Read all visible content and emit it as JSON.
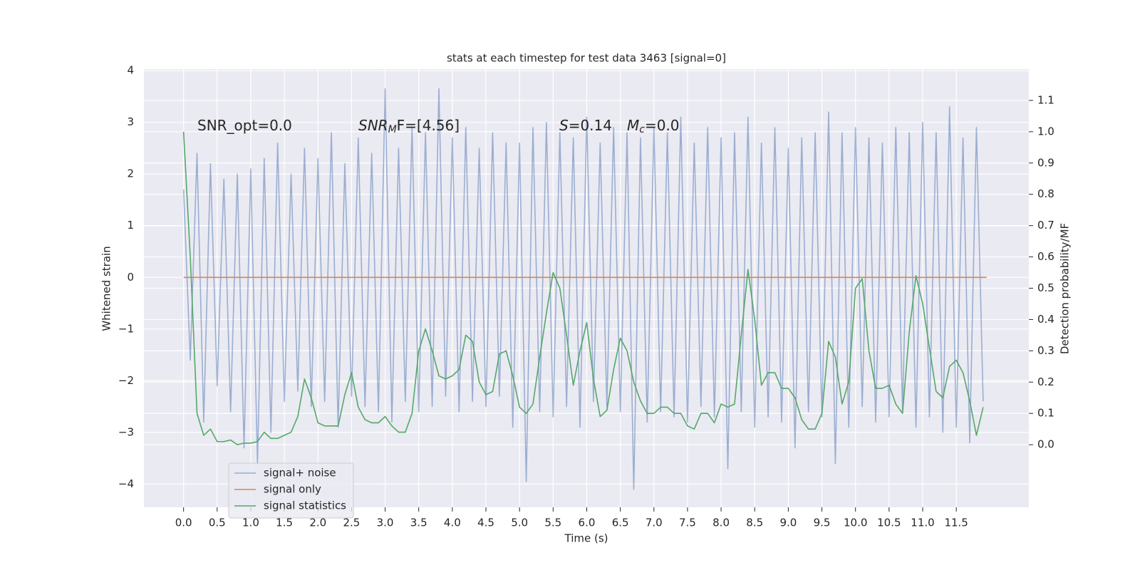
{
  "chart_data": {
    "type": "line",
    "title": "stats at each timestep for test data 3463 [signal=0]",
    "x_label": "Time (s)",
    "y_label": "Whitened strain",
    "y2_label": "Detection probability/MF",
    "annotations": [
      {
        "parts": [
          {
            "text": "SNR_opt=0.0"
          }
        ]
      },
      {
        "parts": [
          {
            "text": "SNR",
            "italic": true
          },
          {
            "text": "M",
            "italic": true,
            "sub": true
          },
          {
            "text": "F=[4.56]"
          }
        ]
      },
      {
        "parts": [
          {
            "text": "S",
            "italic": true
          },
          {
            "text": "=0.14"
          }
        ]
      },
      {
        "parts": [
          {
            "text": "M",
            "italic": true
          },
          {
            "text": "c",
            "italic": true,
            "sub": true
          },
          {
            "text": "=0.0"
          }
        ]
      }
    ],
    "x": [
      0,
      0.1,
      0.2,
      0.3,
      0.4,
      0.5,
      0.6,
      0.7,
      0.8,
      0.9,
      1,
      1.1,
      1.2,
      1.3,
      1.4,
      1.5,
      1.6,
      1.7,
      1.8,
      1.9,
      2,
      2.1,
      2.2,
      2.3,
      2.4,
      2.5,
      2.6,
      2.7,
      2.8,
      2.9,
      3,
      3.1,
      3.2,
      3.3,
      3.4,
      3.5,
      3.6,
      3.7,
      3.8,
      3.9,
      4,
      4.1,
      4.2,
      4.3,
      4.4,
      4.5,
      4.6,
      4.7,
      4.8,
      4.9,
      5,
      5.1,
      5.2,
      5.3,
      5.4,
      5.5,
      5.6,
      5.7,
      5.8,
      5.9,
      6,
      6.1,
      6.2,
      6.3,
      6.4,
      6.5,
      6.6,
      6.7,
      6.8,
      6.9,
      7,
      7.1,
      7.2,
      7.3,
      7.4,
      7.5,
      7.6,
      7.7,
      7.8,
      7.9,
      8,
      8.1,
      8.2,
      8.3,
      8.4,
      8.5,
      8.6,
      8.7,
      8.8,
      8.9,
      9,
      9.1,
      9.2,
      9.3,
      9.4,
      9.5,
      9.6,
      9.7,
      9.8,
      9.9,
      10,
      10.1,
      10.2,
      10.3,
      10.4,
      10.5,
      10.6,
      10.7,
      10.8,
      10.9,
      11,
      11.1,
      11.2,
      11.3,
      11.4,
      11.5,
      11.6,
      11.7,
      11.8,
      11.9
    ],
    "series": [
      {
        "name": "signal+ noise",
        "color": "#4c72b0",
        "opacity": 0.5,
        "values": [
          1.7,
          -1.6,
          2.4,
          -2.8,
          2.2,
          -2.1,
          1.9,
          -2.6,
          2.0,
          -3.3,
          2.1,
          -3.6,
          2.3,
          -3.0,
          2.6,
          -2.4,
          2.0,
          -2.2,
          2.5,
          -2.5,
          2.3,
          -2.4,
          2.8,
          -2.9,
          2.2,
          -2.3,
          2.7,
          -2.5,
          2.4,
          -2.6,
          3.65,
          -2.8,
          2.5,
          -2.4,
          2.9,
          -2.6,
          2.8,
          -2.5,
          3.65,
          -2.3,
          2.7,
          -2.6,
          2.9,
          -2.4,
          2.5,
          -2.5,
          2.8,
          -2.3,
          2.6,
          -2.9,
          2.6,
          -3.95,
          2.9,
          -2.6,
          3.0,
          -2.7,
          2.8,
          -2.5,
          2.7,
          -2.9,
          3.1,
          -2.4,
          2.6,
          -2.5,
          2.9,
          -2.6,
          2.8,
          -4.1,
          2.7,
          -2.8,
          2.9,
          -2.6,
          2.8,
          -2.7,
          3.1,
          -2.8,
          2.6,
          -2.5,
          2.9,
          -2.7,
          2.7,
          -3.7,
          2.8,
          -2.6,
          3.1,
          -2.9,
          2.6,
          -2.7,
          2.9,
          -2.8,
          2.5,
          -3.3,
          2.7,
          -2.6,
          2.8,
          -2.7,
          3.2,
          -3.6,
          2.8,
          -2.9,
          2.9,
          -2.5,
          2.7,
          -2.8,
          2.6,
          -2.7,
          2.9,
          -2.6,
          2.8,
          -2.9,
          3.0,
          -2.7,
          2.8,
          -3.0,
          3.3,
          -2.9,
          2.7,
          -3.2,
          2.9,
          -2.4
        ]
      },
      {
        "name": "signal only",
        "color": "#dd8452",
        "x": [
          0,
          11.95
        ],
        "values": [
          0,
          0
        ]
      },
      {
        "name": "signal statistics",
        "color": "#55a868",
        "axis": "y2",
        "values": [
          1.0,
          0.6,
          0.1,
          0.03,
          0.05,
          0.01,
          0.01,
          0.015,
          0.0,
          0.005,
          0.005,
          0.01,
          0.04,
          0.02,
          0.02,
          0.03,
          0.04,
          0.09,
          0.21,
          0.15,
          0.07,
          0.06,
          0.06,
          0.06,
          0.16,
          0.23,
          0.12,
          0.08,
          0.07,
          0.07,
          0.09,
          0.06,
          0.04,
          0.04,
          0.1,
          0.3,
          0.37,
          0.3,
          0.22,
          0.21,
          0.22,
          0.24,
          0.35,
          0.33,
          0.2,
          0.16,
          0.17,
          0.29,
          0.3,
          0.22,
          0.12,
          0.1,
          0.13,
          0.28,
          0.42,
          0.55,
          0.5,
          0.35,
          0.19,
          0.3,
          0.39,
          0.21,
          0.09,
          0.11,
          0.24,
          0.34,
          0.3,
          0.2,
          0.14,
          0.1,
          0.1,
          0.12,
          0.12,
          0.1,
          0.1,
          0.06,
          0.05,
          0.1,
          0.1,
          0.07,
          0.13,
          0.12,
          0.13,
          0.35,
          0.56,
          0.4,
          0.19,
          0.23,
          0.23,
          0.18,
          0.18,
          0.15,
          0.08,
          0.05,
          0.05,
          0.1,
          0.33,
          0.28,
          0.13,
          0.2,
          0.5,
          0.53,
          0.3,
          0.18,
          0.18,
          0.19,
          0.13,
          0.1,
          0.36,
          0.54,
          0.45,
          0.31,
          0.17,
          0.15,
          0.25,
          0.27,
          0.23,
          0.14,
          0.03,
          0.12
        ]
      }
    ],
    "xlim": [
      -0.59,
      12.58
    ],
    "xticks": [
      {
        "value": 0,
        "label": "0.0"
      },
      0.5,
      {
        "value": 1,
        "label": "1.0"
      },
      1.5,
      {
        "value": 2,
        "label": "2.0"
      },
      2.5,
      {
        "value": 3,
        "label": "3.0"
      },
      3.5,
      {
        "value": 4,
        "label": "4.0"
      },
      4.5,
      {
        "value": 5,
        "label": "5.0"
      },
      5.5,
      {
        "value": 6,
        "label": "6.0"
      },
      6.5,
      {
        "value": 7,
        "label": "7.0"
      },
      7.5,
      {
        "value": 8,
        "label": "8.0"
      },
      8.5,
      {
        "value": 9,
        "label": "9.0"
      },
      9.5,
      {
        "value": 10,
        "label": "10.0"
      },
      10.5,
      {
        "value": 11,
        "label": "11.0"
      },
      11.5
    ],
    "ylim": [
      -4.45,
      4.03
    ],
    "yticks": [
      {
        "value": -4,
        "label": "−4"
      },
      {
        "value": -3,
        "label": "−3"
      },
      {
        "value": -2,
        "label": "−2"
      },
      {
        "value": -1,
        "label": "−1"
      },
      0,
      1,
      2,
      3,
      4
    ],
    "y2lim": [
      -0.2,
      1.2
    ],
    "y2ticks": [
      {
        "value": 0,
        "label": "0.0"
      },
      0.1,
      0.2,
      0.3,
      0.4,
      0.5,
      0.6,
      0.7,
      0.8,
      0.9,
      {
        "value": 1,
        "label": "1.0"
      },
      1.1
    ],
    "grid": true,
    "legend": "lower left"
  }
}
